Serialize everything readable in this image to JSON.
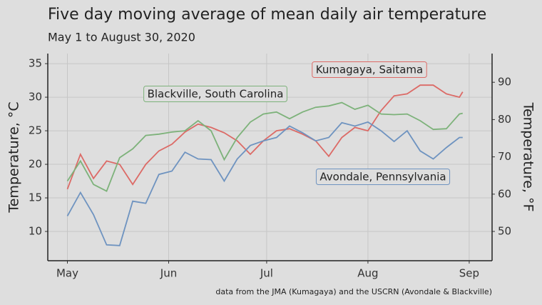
{
  "chart_data": {
    "type": "line",
    "title": "Five day moving average of mean daily air temperature",
    "subtitle": "May 1 to August 30, 2020",
    "ylabel": "Temperature, °C",
    "y2label": "Temperature, °F",
    "caption": "data from the JMA (Kumagaya) and the USCRN (Avondale & Blackville)",
    "x": [
      "2020-05-01",
      "2020-05-05",
      "2020-05-09",
      "2020-05-13",
      "2020-05-17",
      "2020-05-21",
      "2020-05-25",
      "2020-05-29",
      "2020-06-02",
      "2020-06-06",
      "2020-06-10",
      "2020-06-14",
      "2020-06-18",
      "2020-06-22",
      "2020-06-26",
      "2020-06-30",
      "2020-07-04",
      "2020-07-08",
      "2020-07-12",
      "2020-07-16",
      "2020-07-20",
      "2020-07-24",
      "2020-07-28",
      "2020-08-01",
      "2020-08-05",
      "2020-08-09",
      "2020-08-13",
      "2020-08-17",
      "2020-08-21",
      "2020-08-25",
      "2020-08-29",
      "2020-08-30"
    ],
    "series": [
      {
        "name": "Kumagaya, Saitama",
        "color": "#dc6a66",
        "values": [
          16.3,
          21.5,
          17.9,
          20.5,
          20,
          17,
          20,
          22,
          23,
          24.8,
          26,
          25.5,
          24.7,
          23.5,
          21.5,
          23.5,
          25,
          25.3,
          24.5,
          23.5,
          21.2,
          24,
          25.5,
          25,
          28,
          30.2,
          30.5,
          31.8,
          31.8,
          30.5,
          30,
          30.8
        ]
      },
      {
        "name": "Blackville, South Carolina",
        "color": "#7db27a",
        "values": [
          17.5,
          20.5,
          17,
          16,
          21,
          22.3,
          24.3,
          24.5,
          24.8,
          25,
          26.5,
          25,
          20.7,
          24,
          26.3,
          27.5,
          27.8,
          26.8,
          27.8,
          28.5,
          28.7,
          29.2,
          28.2,
          28.8,
          27.5,
          27.4,
          27.5,
          26.5,
          25.2,
          25.3,
          27.5,
          27.6
        ]
      },
      {
        "name": "Avondale, Pennsylvania",
        "color": "#6e93c0",
        "values": [
          12.3,
          15.8,
          12.5,
          8,
          7.9,
          14.5,
          14.2,
          18.5,
          19,
          21.8,
          20.8,
          20.7,
          17.5,
          20.8,
          22.8,
          23.5,
          24,
          25.7,
          24.7,
          23.5,
          24,
          26.2,
          25.7,
          26.3,
          25,
          23.4,
          25,
          22,
          20.8,
          22.5,
          24,
          24
        ]
      }
    ],
    "xlim": [
      "2020-04-25",
      "2020-09-08"
    ],
    "xticks": [
      {
        "value": "2020-05-01",
        "label": "May"
      },
      {
        "value": "2020-06-01",
        "label": "Jun"
      },
      {
        "value": "2020-07-01",
        "label": "Jul"
      },
      {
        "value": "2020-08-01",
        "label": "Aug"
      },
      {
        "value": "2020-09-01",
        "label": "Sep"
      }
    ],
    "ylim": [
      5.64,
      36.5
    ],
    "yticks": [
      10,
      15,
      20,
      25,
      30,
      35
    ],
    "y2lim": [
      42.15,
      97.7
    ],
    "y2ticks": [
      50,
      60,
      70,
      80,
      90
    ],
    "grid": true
  }
}
